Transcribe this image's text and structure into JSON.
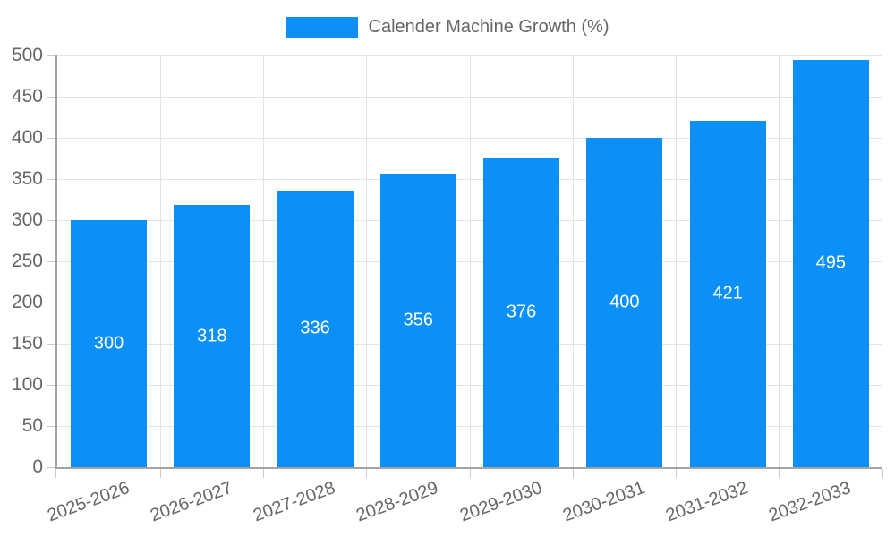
{
  "chart_data": {
    "type": "bar",
    "title": "Calender Machine Growth (%)",
    "categories": [
      "2025-2026",
      "2026-2027",
      "2027-2028",
      "2028-2029",
      "2029-2030",
      "2030-2031",
      "2031-2032",
      "2032-2033"
    ],
    "values": [
      300,
      318,
      336,
      356,
      376,
      400,
      421,
      495
    ],
    "xlabel": "",
    "ylabel": "",
    "ylim": [
      0,
      500
    ],
    "ytick_step": 50,
    "grid": true,
    "legend_position": "top",
    "bar_color": "#0A90F6",
    "bar_label_color": "#ffffff",
    "tick_label_color": "#666666",
    "axis_color": "#a3a3a3",
    "grid_color": "#e3e3e3"
  }
}
